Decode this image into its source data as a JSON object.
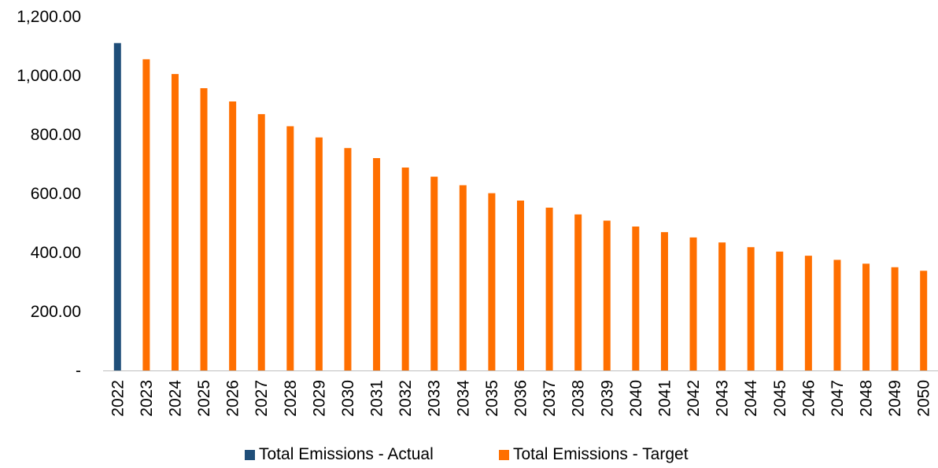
{
  "chart_data": {
    "type": "bar",
    "categories": [
      "2022",
      "2023",
      "2024",
      "2025",
      "2026",
      "2027",
      "2028",
      "2029",
      "2030",
      "2031",
      "2032",
      "2033",
      "2034",
      "2035",
      "2036",
      "2037",
      "2038",
      "2039",
      "2040",
      "2041",
      "2042",
      "2043",
      "2044",
      "2045",
      "2046",
      "2047",
      "2048",
      "2049",
      "2050"
    ],
    "series": [
      {
        "name": "Total Emissions - Actual",
        "color": "#1f4e79",
        "values": [
          1110,
          null,
          null,
          null,
          null,
          null,
          null,
          null,
          null,
          null,
          null,
          null,
          null,
          null,
          null,
          null,
          null,
          null,
          null,
          null,
          null,
          null,
          null,
          null,
          null,
          null,
          null,
          null,
          null
        ]
      },
      {
        "name": "Total Emissions - Target",
        "color": "#ff6f00",
        "values": [
          null,
          1055,
          1005,
          957,
          912,
          869,
          828,
          790,
          754,
          720,
          688,
          657,
          628,
          601,
          576,
          552,
          529,
          508,
          488,
          469,
          451,
          434,
          418,
          403,
          389,
          375,
          362,
          350,
          338
        ]
      }
    ],
    "y_ticks": [
      {
        "value": 0,
        "label": "-"
      },
      {
        "value": 200,
        "label": "200.00"
      },
      {
        "value": 400,
        "label": "400.00"
      },
      {
        "value": 600,
        "label": "600.00"
      },
      {
        "value": 800,
        "label": "800.00"
      },
      {
        "value": 1000,
        "label": "1,000.00"
      },
      {
        "value": 1200,
        "label": "1,200.00"
      }
    ],
    "ylim": [
      0,
      1200
    ],
    "title": "",
    "xlabel": "",
    "ylabel": "",
    "grid": false,
    "legend_position": "bottom",
    "axis_color": "#bfbfbf"
  },
  "legend": {
    "actual_label": "Total Emissions - Actual",
    "target_label": "Total Emissions - Target",
    "actual_color": "#1f4e79",
    "target_color": "#ff6f00"
  }
}
